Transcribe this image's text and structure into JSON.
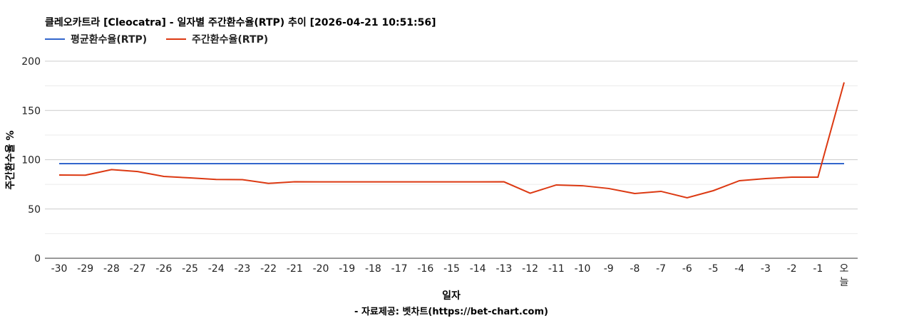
{
  "chart_data": {
    "type": "line",
    "title": "클레오카트라 [Cleocatra] - 일자별 주간환수율(RTP) 추이 [2026-04-21 10:51:56]",
    "xlabel": "일자",
    "ylabel": "주간환수율 %",
    "footer": "- 자료제공: 벳차트(https://bet-chart.com)",
    "ylim": [
      0,
      200
    ],
    "yticks": [
      0,
      50,
      100,
      150,
      200
    ],
    "grid": true,
    "legend_position": "top-left",
    "categories": [
      "-30",
      "-29",
      "-28",
      "-27",
      "-26",
      "-25",
      "-24",
      "-23",
      "-22",
      "-21",
      "-20",
      "-19",
      "-18",
      "-17",
      "-16",
      "-15",
      "-14",
      "-13",
      "-12",
      "-11",
      "-10",
      "-9",
      "-8",
      "-7",
      "-6",
      "-5",
      "-4",
      "-3",
      "-2",
      "-1",
      "오늘"
    ],
    "series": [
      {
        "name": "평균환수율(RTP)",
        "color": "#3366cc",
        "values": [
          96,
          96,
          96,
          96,
          96,
          96,
          96,
          96,
          96,
          96,
          96,
          96,
          96,
          96,
          96,
          96,
          96,
          96,
          96,
          96,
          96,
          96,
          96,
          96,
          96,
          96,
          96,
          96,
          96,
          96,
          96
        ]
      },
      {
        "name": "주간환수율(RTP)",
        "color": "#dc3912",
        "values": [
          84.5,
          84.3,
          90,
          88,
          83,
          81.6,
          80,
          79.8,
          76,
          77.6,
          77.5,
          77.5,
          77.5,
          77.5,
          77.5,
          77.5,
          77.5,
          77.6,
          66,
          74.4,
          73.6,
          70.8,
          65.7,
          67.9,
          61.4,
          68.6,
          78.7,
          80.9,
          82.3,
          82.3,
          178.5
        ]
      }
    ]
  }
}
